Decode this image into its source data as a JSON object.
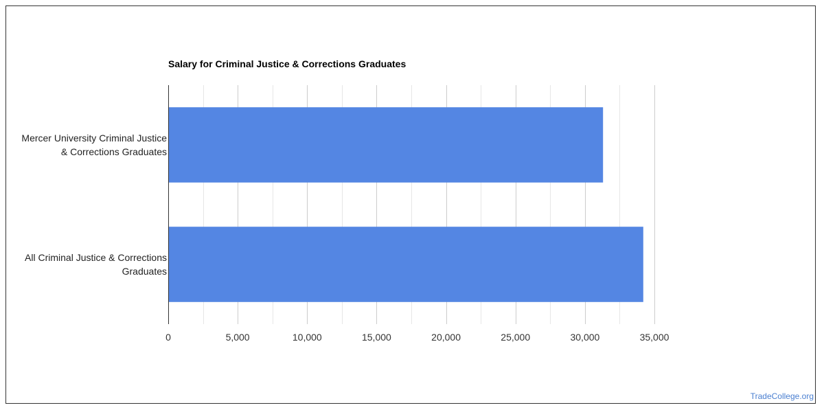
{
  "chart_data": {
    "type": "bar",
    "orientation": "horizontal",
    "title": "Salary for Criminal Justice & Corrections Graduates",
    "categories": [
      "Mercer University Criminal Justice & Corrections Graduates",
      "All Criminal Justice & Corrections Graduates"
    ],
    "category_lines": [
      [
        "Mercer University Criminal Justice",
        "& Corrections Graduates"
      ],
      [
        "All Criminal Justice & Corrections",
        "Graduates"
      ]
    ],
    "values": [
      31300,
      34200
    ],
    "xlim": [
      0,
      35000
    ],
    "xticks": [
      0,
      5000,
      10000,
      15000,
      20000,
      25000,
      30000,
      35000
    ],
    "xtick_labels": [
      "0",
      "5,000",
      "10,000",
      "15,000",
      "20,000",
      "25,000",
      "30,000",
      "35,000"
    ],
    "xlabel": "",
    "ylabel": "",
    "grid": true,
    "bar_color": "#5486e3",
    "grid_color": "#cccccc",
    "minor_grid_color": "#e6e6e6"
  },
  "watermark": "TradeCollege.org"
}
